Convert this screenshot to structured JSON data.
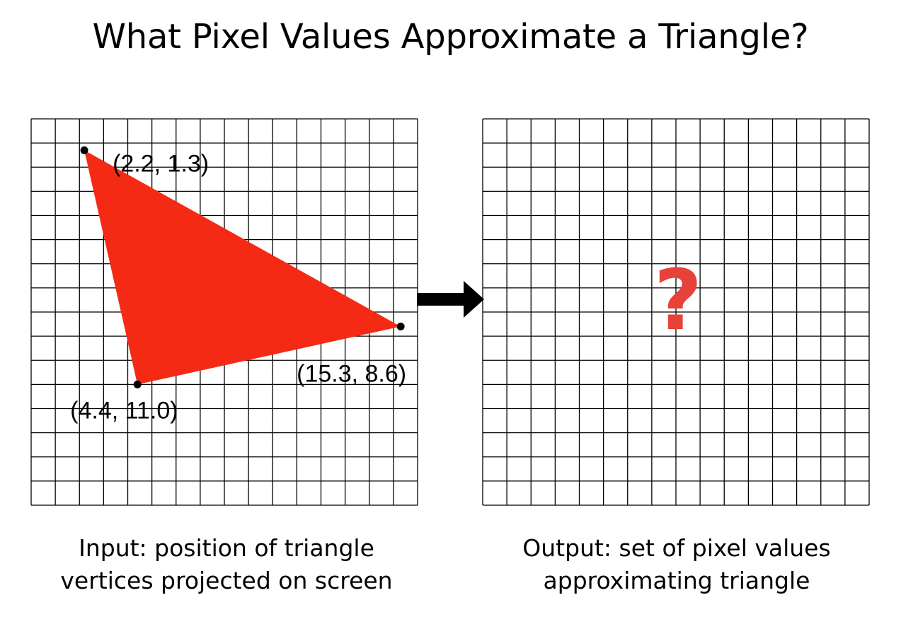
{
  "title": "What Pixel Values Approximate a Triangle?",
  "grid": {
    "columns": 16,
    "rows": 16
  },
  "input": {
    "vertices": [
      {
        "x": 2.2,
        "y": 1.3,
        "label": "(2.2, 1.3)"
      },
      {
        "x": 15.3,
        "y": 8.6,
        "label": "(15.3, 8.6)"
      },
      {
        "x": 4.4,
        "y": 11.0,
        "label": "(4.4, 11.0)"
      }
    ],
    "fill_color": "#f42a15",
    "caption": [
      "Input: position of triangle",
      "vertices projected on screen"
    ]
  },
  "arrow_icon": "right-arrow-icon",
  "output": {
    "symbol": "?",
    "symbol_color": "#e8413a",
    "caption": [
      "Output: set of pixel values",
      "approximating triangle"
    ]
  }
}
